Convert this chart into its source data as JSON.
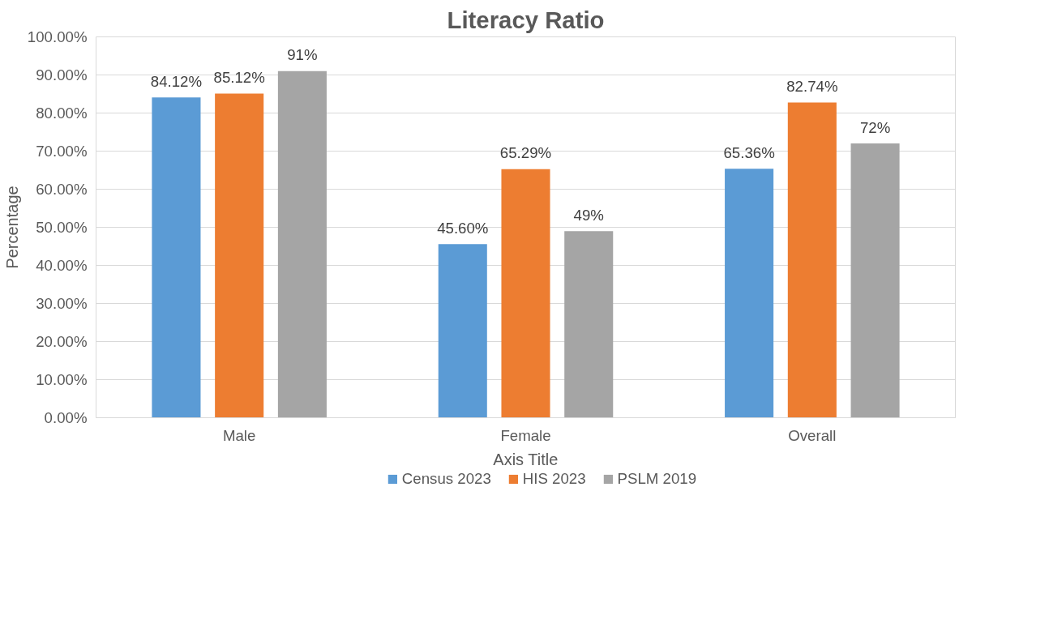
{
  "chart_data": {
    "type": "bar",
    "title": "Literacy Ratio",
    "xlabel": "Axis Title",
    "ylabel": "Percentage",
    "categories": [
      "Male",
      "Female",
      "Overall"
    ],
    "series": [
      {
        "name": "Census 2023",
        "color": "#5b9bd5",
        "values": [
          84.12,
          45.6,
          65.36
        ],
        "value_labels": [
          "84.12%",
          "45.60%",
          "65.36%"
        ]
      },
      {
        "name": "HIS 2023",
        "color": "#ed7d31",
        "values": [
          85.12,
          65.29,
          82.74
        ],
        "value_labels": [
          "85.12%",
          "65.29%",
          "82.74%"
        ]
      },
      {
        "name": "PSLM 2019",
        "color": "#a5a5a5",
        "values": [
          91,
          49,
          72
        ],
        "value_labels": [
          "91%",
          "49%",
          "72%"
        ]
      }
    ],
    "ylim": [
      0,
      100
    ],
    "yticks": [
      {
        "value": 0,
        "label": "0.00%"
      },
      {
        "value": 10,
        "label": "10.00%"
      },
      {
        "value": 20,
        "label": "20.00%"
      },
      {
        "value": 30,
        "label": "30.00%"
      },
      {
        "value": 40,
        "label": "40.00%"
      },
      {
        "value": 50,
        "label": "50.00%"
      },
      {
        "value": 60,
        "label": "60.00%"
      },
      {
        "value": 70,
        "label": "70.00%"
      },
      {
        "value": 80,
        "label": "80.00%"
      },
      {
        "value": 90,
        "label": "90.00%"
      },
      {
        "value": 100,
        "label": "100.00%"
      }
    ],
    "grid": "y",
    "legend": "bottom"
  }
}
